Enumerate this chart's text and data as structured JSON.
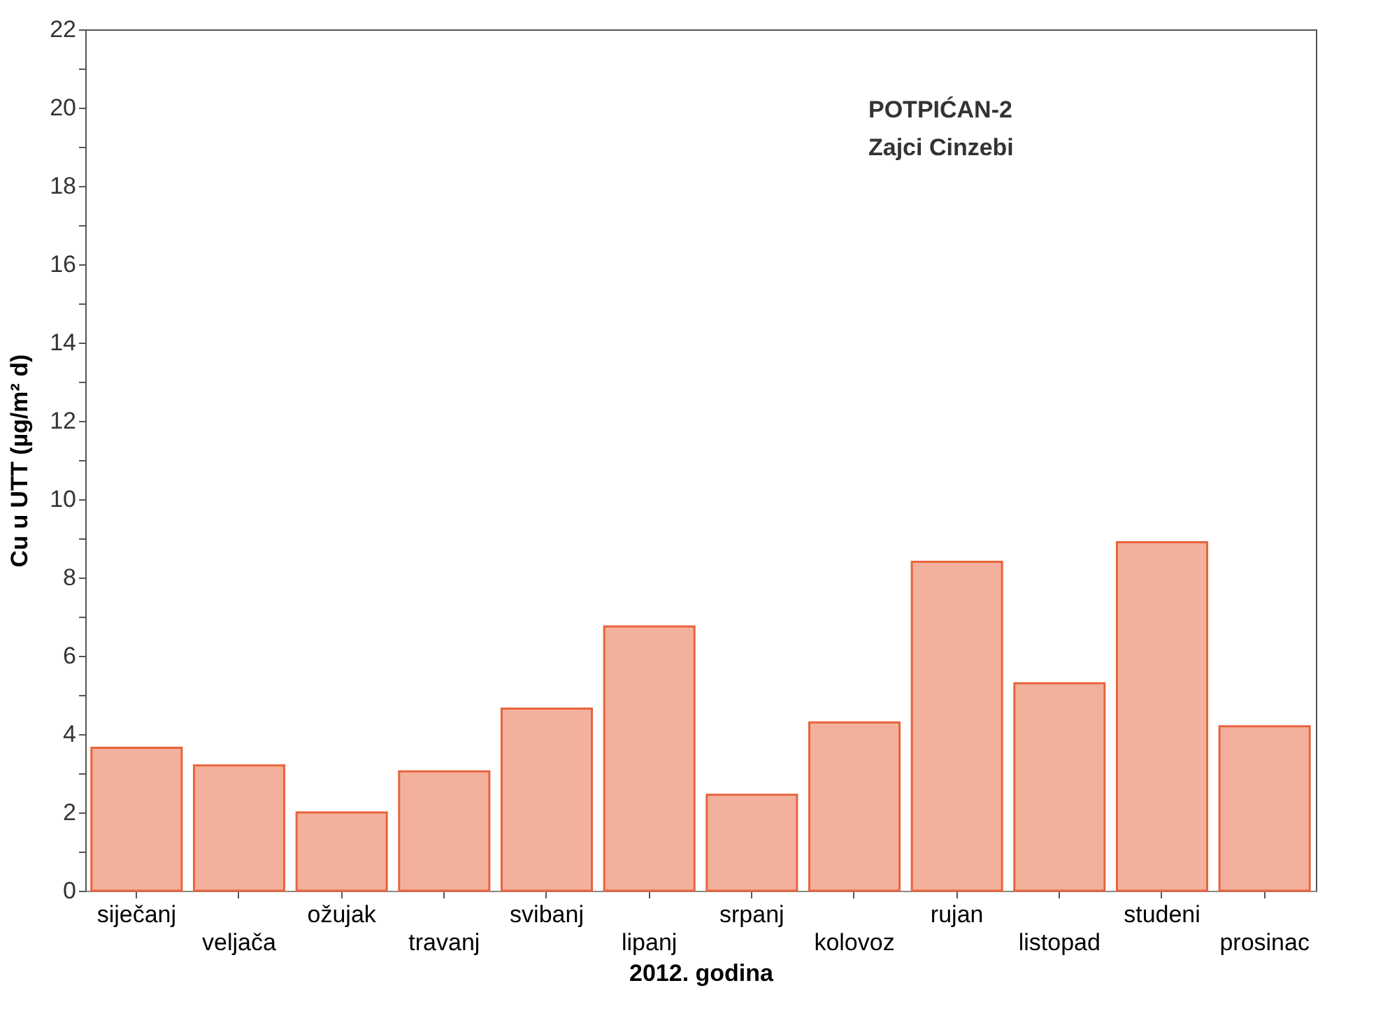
{
  "chart_data": {
    "type": "bar",
    "categories": [
      "siječanj",
      "veljača",
      "ožujak",
      "travanj",
      "svibanj",
      "lipanj",
      "srpanj",
      "kolovoz",
      "rujan",
      "listopad",
      "studeni",
      "prosinac"
    ],
    "values": [
      3.65,
      3.2,
      2.0,
      3.05,
      4.65,
      6.75,
      2.45,
      4.3,
      8.4,
      5.3,
      8.9,
      4.2
    ],
    "color": "#e8643c",
    "ylim": [
      0,
      22
    ],
    "yticks": [
      0,
      {
        "value": 1,
        "label": null
      },
      2,
      {
        "value": 3,
        "label": null
      },
      4,
      {
        "value": 5,
        "label": null
      },
      6,
      {
        "value": 7,
        "label": null
      },
      8,
      {
        "value": 9,
        "label": null
      },
      10,
      {
        "value": 11,
        "label": null
      },
      12,
      {
        "value": 13,
        "label": null
      },
      14,
      {
        "value": 15,
        "label": null
      },
      16,
      {
        "value": 17,
        "label": null
      },
      18,
      {
        "value": 19,
        "label": null
      },
      20,
      {
        "value": 21,
        "label": null
      },
      22
    ],
    "xlabel": "2012. godina",
    "ylabel": "Cu u UTT (µg/m² d)",
    "annotations": [
      "POTPIĆAN-2",
      "Zajci Cinzebi"
    ],
    "grid": false
  }
}
